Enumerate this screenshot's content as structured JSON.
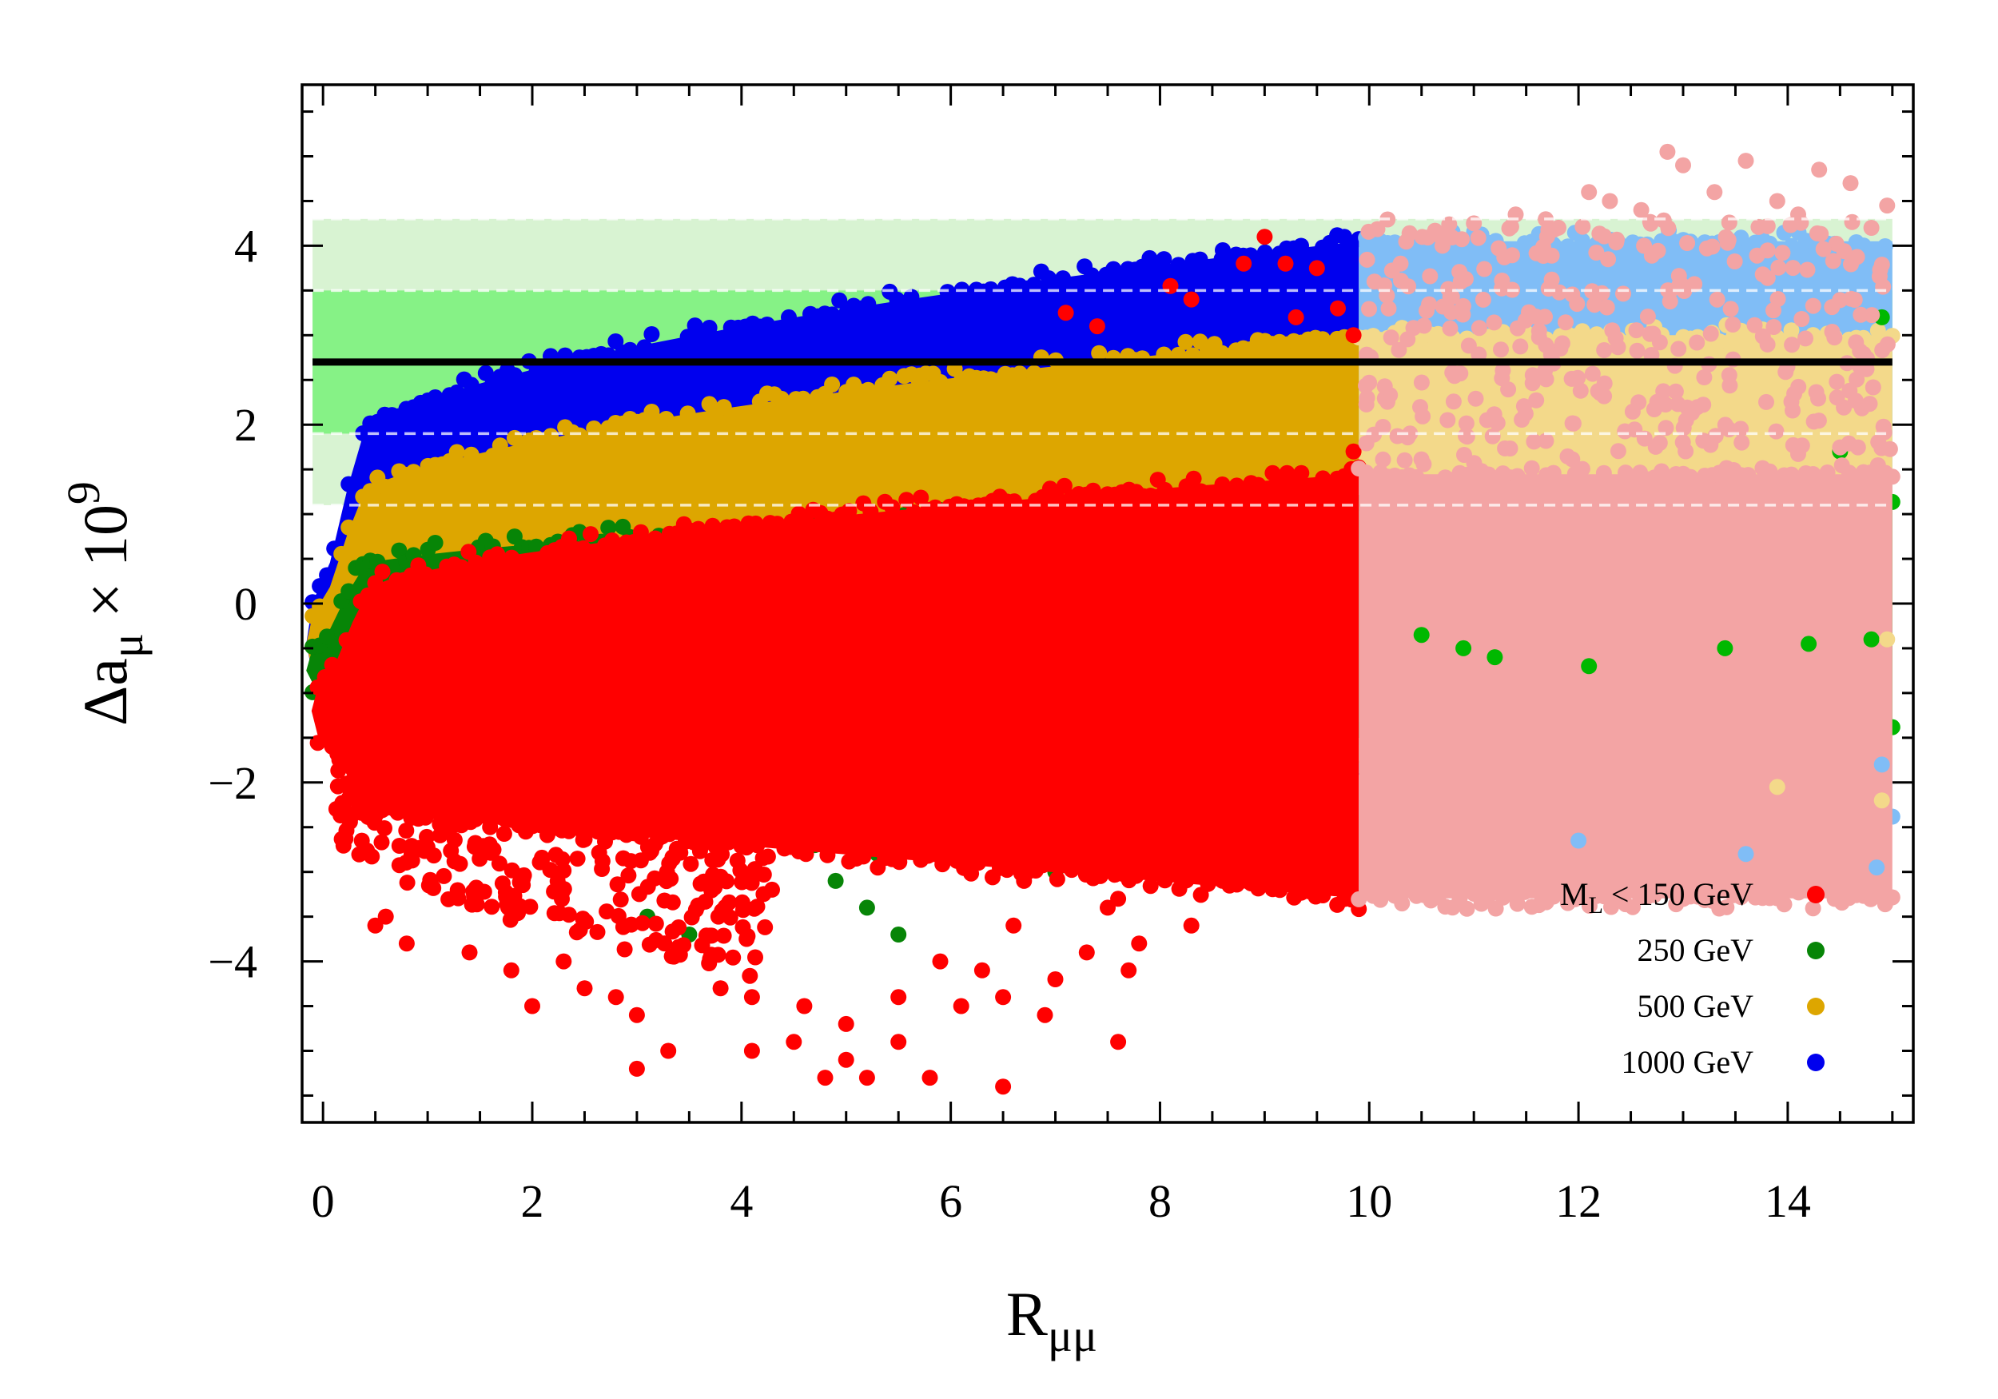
{
  "chart_data": {
    "type": "scatter",
    "title": "",
    "xlabel": {
      "base": "R",
      "sub": "μμ"
    },
    "ylabel": {
      "base": "Δa",
      "sub": "μ",
      "mid": " × 10",
      "sup": "9"
    },
    "xlim": [
      -0.2,
      15.2
    ],
    "ylim": [
      -5.8,
      5.8
    ],
    "xticks": [
      0,
      2,
      4,
      6,
      8,
      10,
      12,
      14
    ],
    "yticks": [
      -4,
      -2,
      0,
      2,
      4
    ],
    "x_minor_step": 0.5,
    "y_minor_step": 0.5,
    "grid": false,
    "legend_position": "bottom-right",
    "reference_line": {
      "y": 2.7,
      "color": "#000000"
    },
    "bands": [
      {
        "ymin": 1.1,
        "ymax": 4.3,
        "color": "#d8f3d2"
      },
      {
        "ymin": 1.9,
        "ymax": 3.5,
        "color": "#86f286"
      }
    ],
    "dashed_lines": [
      1.1,
      1.9,
      3.5,
      4.3
    ],
    "split_x": 9.9,
    "series": [
      {
        "name": "1000 GeV",
        "legend_label": "1000 GeV",
        "color": "#0000ee",
        "faded_color": "#80bdf6",
        "envelope": {
          "x0": -0.1,
          "y_tip": -0.45,
          "upper_base": 1.4,
          "upper_gain": 2.65,
          "lower_base": -1.8,
          "lower_gain": -0.02,
          "upper_slope_far": 0.0,
          "lower_slope_far": -0.11
        },
        "points": [
          [
            8.6,
            3.95
          ],
          [
            8.4,
            3.75
          ],
          [
            6.8,
            -1.9
          ],
          [
            9.6,
            -2.05
          ],
          [
            9.8,
            -1.95
          ],
          [
            10.5,
            -2.2
          ],
          [
            12.8,
            -2.5
          ],
          [
            14.5,
            -2.75
          ]
        ]
      },
      {
        "name": "500 GeV",
        "legend_label": "500 GeV",
        "color": "#dda600",
        "faded_color": "#f3d98a",
        "envelope": {
          "x0": -0.1,
          "y_tip": -0.45,
          "upper_base": 0.8,
          "upper_gain": 2.2,
          "lower_base": -1.7,
          "lower_gain": 0.0,
          "upper_slope_far": 0.0,
          "lower_slope_far": -0.02
        },
        "points": [
          [
            5.7,
            2.55
          ],
          [
            4.2,
            2.15
          ],
          [
            9.8,
            -1.6
          ],
          [
            12.0,
            -2.0
          ],
          [
            14.5,
            -2.1
          ]
        ]
      },
      {
        "name": "250 GeV",
        "legend_label": "250 GeV",
        "color": "#078507",
        "faded_color": "#00b800",
        "envelope": {
          "x0": -0.1,
          "y_tip": -0.75,
          "upper_base": 0.25,
          "upper_gain": 0.9,
          "lower_base": -1.3,
          "lower_gain": -0.1,
          "upper_slope_far": 0.0,
          "lower_slope_far": 0.0
        },
        "points": [
          [
            8.4,
            -2.7
          ],
          [
            7.9,
            -2.4
          ],
          [
            7.8,
            -2.8
          ],
          [
            7.6,
            -2.3
          ],
          [
            7.3,
            -2.6
          ],
          [
            7.0,
            -3.0
          ],
          [
            6.6,
            -2.5
          ],
          [
            6.2,
            -2.9
          ],
          [
            5.8,
            -2.6
          ],
          [
            5.3,
            -2.8
          ],
          [
            5.5,
            -3.7
          ],
          [
            5.2,
            -3.4
          ],
          [
            4.7,
            -2.7
          ],
          [
            4.9,
            -3.1
          ],
          [
            4.4,
            -2.3
          ],
          [
            3.5,
            -3.7
          ],
          [
            3.1,
            -3.5
          ],
          [
            6.5,
            -2.2
          ],
          [
            6.9,
            -2.05
          ],
          [
            7.5,
            -1.95
          ],
          [
            8.2,
            -2.05
          ],
          [
            5.0,
            -2.0
          ],
          [
            12.0,
            -0.55
          ],
          [
            14.9,
            3.2
          ],
          [
            14.5,
            1.7
          ]
        ]
      },
      {
        "name": "M_L < 150 GeV",
        "legend_label": "M",
        "legend_sub": "L",
        "legend_suffix": " < 150 GeV",
        "color": "#ff0000",
        "faded_color": "#f3a4a4",
        "envelope": {
          "x0": -0.05,
          "y_tip": -1.2,
          "upper_base": -0.15,
          "upper_gain": 1.6,
          "lower_base": -2.3,
          "lower_gain": -1.0,
          "upper_slope_far": 0.0,
          "lower_slope_far": 0.0
        },
        "points": [
          [
            9.0,
            4.1
          ],
          [
            8.8,
            3.8
          ],
          [
            9.2,
            3.8
          ],
          [
            9.5,
            3.75
          ],
          [
            9.7,
            3.3
          ],
          [
            7.1,
            3.25
          ],
          [
            7.4,
            3.1
          ],
          [
            8.1,
            3.55
          ],
          [
            8.3,
            3.4
          ],
          [
            9.3,
            3.2
          ],
          [
            9.85,
            3.0
          ],
          [
            9.85,
            1.7
          ],
          [
            9.7,
            1.25
          ],
          [
            8.3,
            -3.6
          ],
          [
            7.8,
            -3.8
          ],
          [
            7.7,
            -4.1
          ],
          [
            7.5,
            -3.4
          ],
          [
            7.6,
            -4.9
          ],
          [
            7.3,
            -3.9
          ],
          [
            7.3,
            -3.0
          ],
          [
            7.0,
            -4.2
          ],
          [
            6.9,
            -4.6
          ],
          [
            6.6,
            -3.6
          ],
          [
            6.5,
            -5.4
          ],
          [
            6.5,
            -4.4
          ],
          [
            6.3,
            -4.1
          ],
          [
            6.1,
            -4.5
          ],
          [
            5.9,
            -4.0
          ],
          [
            5.8,
            -5.3
          ],
          [
            5.5,
            -4.9
          ],
          [
            5.5,
            -4.4
          ],
          [
            5.2,
            -5.3
          ],
          [
            5.0,
            -4.7
          ],
          [
            5.0,
            -5.1
          ],
          [
            4.8,
            -5.3
          ],
          [
            4.6,
            -4.5
          ],
          [
            4.5,
            -4.9
          ],
          [
            4.1,
            -5.0
          ],
          [
            4.1,
            -4.4
          ],
          [
            3.8,
            -4.3
          ],
          [
            3.3,
            -5.0
          ],
          [
            3.0,
            -5.2
          ],
          [
            3.0,
            -4.6
          ],
          [
            2.8,
            -4.4
          ],
          [
            2.5,
            -4.3
          ],
          [
            2.3,
            -4.0
          ],
          [
            2.0,
            -4.5
          ],
          [
            1.8,
            -4.1
          ],
          [
            1.4,
            -3.9
          ],
          [
            0.8,
            -3.8
          ],
          [
            0.6,
            -3.5
          ],
          [
            0.5,
            -3.6
          ],
          [
            8.3,
            -3.0
          ],
          [
            7.9,
            -2.1
          ],
          [
            6.7,
            -3.1
          ],
          [
            7.1,
            -2.9
          ],
          [
            7.6,
            -3.3
          ]
        ]
      }
    ],
    "faded_points": [
      {
        "color": "#f3a4a4",
        "points": [
          [
            12.85,
            5.05
          ],
          [
            13.0,
            4.9
          ],
          [
            13.6,
            4.95
          ],
          [
            14.3,
            4.85
          ],
          [
            14.6,
            4.7
          ],
          [
            14.95,
            4.45
          ],
          [
            12.1,
            4.6
          ],
          [
            12.3,
            4.5
          ],
          [
            11.4,
            4.35
          ],
          [
            11.0,
            4.25
          ],
          [
            10.3,
            3.8
          ],
          [
            10.05,
            3.6
          ],
          [
            13.3,
            4.6
          ],
          [
            13.9,
            4.5
          ],
          [
            12.6,
            4.4
          ],
          [
            14.1,
            4.35
          ],
          [
            14.8,
            4.2
          ],
          [
            11.7,
            4.1
          ],
          [
            10.7,
            4.0
          ]
        ]
      },
      {
        "color": "#00b800",
        "points": [
          [
            10.9,
            -0.5
          ],
          [
            11.2,
            -0.6
          ],
          [
            12.1,
            -0.7
          ],
          [
            13.4,
            -0.5
          ],
          [
            14.2,
            -0.45
          ],
          [
            14.8,
            -0.4
          ],
          [
            10.5,
            -0.35
          ]
        ]
      },
      {
        "color": "#80bdf6",
        "points": [
          [
            14.9,
            -1.8
          ],
          [
            14.85,
            -2.95
          ],
          [
            13.6,
            -2.8
          ],
          [
            12.0,
            -2.65
          ]
        ]
      },
      {
        "color": "#f3d98a",
        "points": [
          [
            14.95,
            -0.4
          ],
          [
            14.9,
            -2.2
          ],
          [
            13.9,
            -2.05
          ]
        ]
      }
    ],
    "legend": [
      {
        "label": "M",
        "sub": "L",
        "suffix": " < 150 GeV",
        "color": "#ff0000"
      },
      {
        "label": "250 GeV",
        "color": "#078507"
      },
      {
        "label": "500 GeV",
        "color": "#dda600"
      },
      {
        "label": "1000 GeV",
        "color": "#0000ee"
      }
    ]
  }
}
